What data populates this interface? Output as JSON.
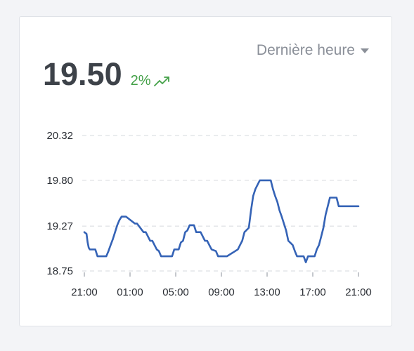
{
  "period_select": {
    "label": "Dernière heure"
  },
  "metric": {
    "value": "19.50",
    "trend_percent": "2%",
    "trend_direction": "up"
  },
  "colors": {
    "line": "#3563b6",
    "trend": "#43a047",
    "grid": "#d6d9de"
  },
  "chart_data": {
    "type": "line",
    "y_ticks": [
      "20.32",
      "19.80",
      "19.27",
      "18.75"
    ],
    "ylim": [
      18.75,
      20.32
    ],
    "x_ticks": [
      "21:00",
      "01:00",
      "05:00",
      "09:00",
      "13:00",
      "17:00",
      "21:00"
    ],
    "xlim": [
      0,
      25
    ],
    "grid": "horizontal-dashed",
    "series": [
      {
        "x": [
          0,
          0.2,
          0.3,
          0.4,
          0.5,
          1.0,
          1.2,
          2.0,
          2.2,
          2.4,
          2.6,
          2.8,
          3.0,
          3.2,
          3.4,
          3.6,
          3.8,
          4.6,
          4.8,
          5.4,
          5.6,
          6.0,
          6.2,
          6.6,
          6.8,
          7.0,
          7.2,
          8.0,
          8.2,
          8.6,
          8.8,
          9.0,
          9.2,
          9.4,
          9.6,
          10.0,
          10.2,
          10.4,
          10.6,
          11.0,
          11.2,
          11.4,
          11.6,
          12.0,
          12.2,
          12.4,
          12.6,
          12.8,
          13.0,
          14.0,
          14.2,
          14.4,
          14.6,
          15.0,
          15.2,
          15.4,
          15.6,
          16.0,
          16.2,
          16.4,
          16.6,
          17.0,
          17.2,
          17.4,
          17.6,
          17.8,
          18.0,
          18.2,
          18.4,
          18.6,
          19.0,
          19.2,
          19.4,
          19.6,
          19.8,
          20.0,
          20.2,
          20.4,
          20.6,
          20.8,
          21.0,
          21.2,
          21.4,
          21.6,
          21.8,
          22.0,
          22.2,
          22.4,
          22.6,
          22.8,
          23.0,
          23.2,
          23.4,
          23.6,
          23.8,
          24.0,
          24.2,
          24.4,
          24.6,
          24.8,
          25.0
        ],
        "y": [
          19.2,
          19.18,
          19.08,
          19.02,
          19.0,
          19.0,
          18.92,
          18.92,
          18.98,
          19.05,
          19.12,
          19.2,
          19.28,
          19.34,
          19.38,
          19.38,
          19.38,
          19.3,
          19.3,
          19.2,
          19.2,
          19.1,
          19.1,
          19.0,
          18.98,
          18.92,
          18.92,
          18.92,
          19.0,
          19.0,
          19.08,
          19.1,
          19.2,
          19.22,
          19.28,
          19.28,
          19.2,
          19.2,
          19.2,
          19.1,
          19.1,
          19.05,
          19.0,
          18.98,
          18.92,
          18.92,
          18.92,
          18.92,
          18.92,
          19.0,
          19.05,
          19.1,
          19.2,
          19.25,
          19.45,
          19.62,
          19.7,
          19.8,
          19.8,
          19.8,
          19.8,
          19.8,
          19.7,
          19.62,
          19.55,
          19.45,
          19.38,
          19.3,
          19.22,
          19.1,
          19.05,
          18.98,
          18.92,
          18.92,
          18.92,
          18.92,
          18.85,
          18.92,
          18.92,
          18.92,
          18.92,
          19.0,
          19.05,
          19.15,
          19.25,
          19.4,
          19.5,
          19.6,
          19.6,
          19.6,
          19.6,
          19.5,
          19.5,
          19.5,
          19.5,
          19.5,
          19.5,
          19.5,
          19.5,
          19.5,
          19.5
        ]
      }
    ]
  }
}
